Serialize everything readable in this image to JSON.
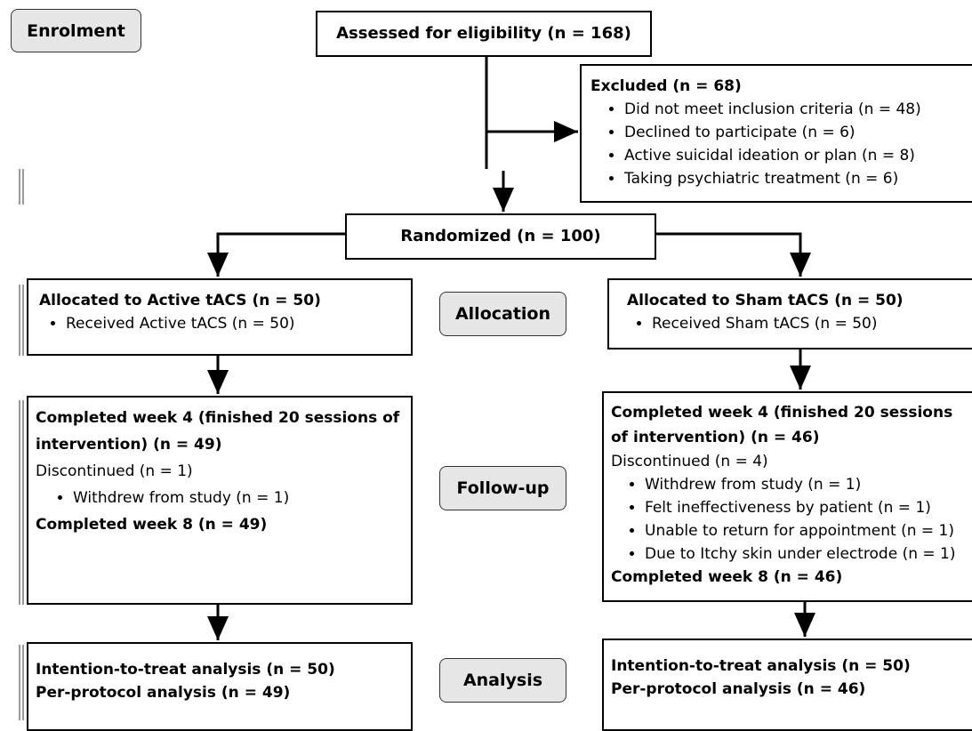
{
  "sections": [
    "Enrolment",
    "Allocation",
    "Follow-up",
    "Analysis"
  ],
  "assessed": "Assessed for eligibility (n = 168)",
  "excluded": {
    "title": "Excluded (n = 68)",
    "items": [
      "Did not meet inclusion criteria (n = 48)",
      "Declined to participate (n = 6)",
      "Active suicidal ideation or plan (n = 8)",
      "Taking psychiatric treatment (n = 6)"
    ]
  },
  "randomized": "Randomized (n = 100)",
  "active": {
    "allocation": {
      "title": "Allocated to Active tACS (n = 50)",
      "items": [
        "Received Active tACS (n = 50)"
      ]
    },
    "followup": {
      "completed_week4": "Completed week 4 (finished 20 sessions of intervention) (n = 49)",
      "discontinued": "Discontinued (n = 1)",
      "reasons": [
        "Withdrew from study (n = 1)"
      ],
      "completed_week8": "Completed week 8 (n = 49)"
    },
    "analysis": [
      "Intention-to-treat analysis (n = 50)",
      "Per-protocol analysis (n = 49)"
    ]
  },
  "sham": {
    "allocation": {
      "title": "Allocated to Sham tACS (n = 50)",
      "items": [
        "Received Sham tACS (n = 50)"
      ]
    },
    "followup": {
      "completed_week4": "Completed week 4 (finished 20 sessions of intervention) (n = 46)",
      "discontinued": "Discontinued (n = 4)",
      "reasons": [
        "Withdrew from study (n = 1)",
        "Felt ineffectiveness by patient (n = 1)",
        "Unable to return for appointment (n = 1)",
        "Due to Itchy skin under electrode (n = 1)"
      ],
      "completed_week8": "Completed week 8 (n = 46)"
    },
    "analysis": [
      "Intention-to-treat analysis (n = 50)",
      "Per-protocol analysis (n = 46)"
    ]
  }
}
